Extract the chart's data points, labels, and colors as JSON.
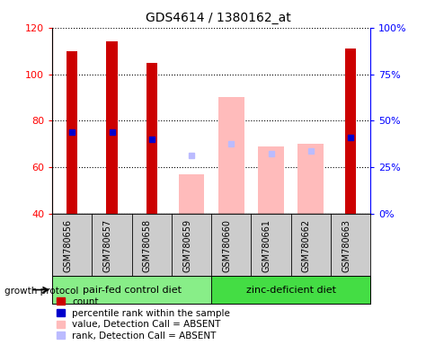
{
  "title": "GDS4614 / 1380162_at",
  "samples": [
    "GSM780656",
    "GSM780657",
    "GSM780658",
    "GSM780659",
    "GSM780660",
    "GSM780661",
    "GSM780662",
    "GSM780663"
  ],
  "count_values": [
    110,
    114,
    105,
    null,
    null,
    null,
    null,
    111
  ],
  "percentile_values": [
    75,
    75,
    72,
    null,
    null,
    null,
    null,
    73
  ],
  "absent_value": [
    null,
    null,
    null,
    57,
    90,
    69,
    70,
    null
  ],
  "absent_rank": [
    null,
    null,
    null,
    65,
    70,
    66,
    67,
    null
  ],
  "ylim_left": [
    40,
    120
  ],
  "yticks_left": [
    40,
    60,
    80,
    100,
    120
  ],
  "yticks_right_vals": [
    40,
    60,
    80,
    100,
    120
  ],
  "yticklabels_right": [
    "0%",
    "25%",
    "50%",
    "75%",
    "100%"
  ],
  "groups": [
    {
      "label": "pair-fed control diet",
      "color": "#88ee88",
      "start": 0,
      "end": 4
    },
    {
      "label": "zinc-deficient diet",
      "color": "#44dd44",
      "start": 4,
      "end": 8
    }
  ],
  "group_protocol_label": "growth protocol",
  "bar_width": 0.5,
  "count_color": "#cc0000",
  "percentile_color": "#0000cc",
  "absent_value_color": "#ffbbbb",
  "absent_rank_color": "#bbbbff",
  "sample_label_bg": "#cccccc",
  "plot_bg_color": "#ffffff",
  "legend_items": [
    {
      "label": "count",
      "color": "#cc0000"
    },
    {
      "label": "percentile rank within the sample",
      "color": "#0000cc"
    },
    {
      "label": "value, Detection Call = ABSENT",
      "color": "#ffbbbb"
    },
    {
      "label": "rank, Detection Call = ABSENT",
      "color": "#bbbbff"
    }
  ]
}
